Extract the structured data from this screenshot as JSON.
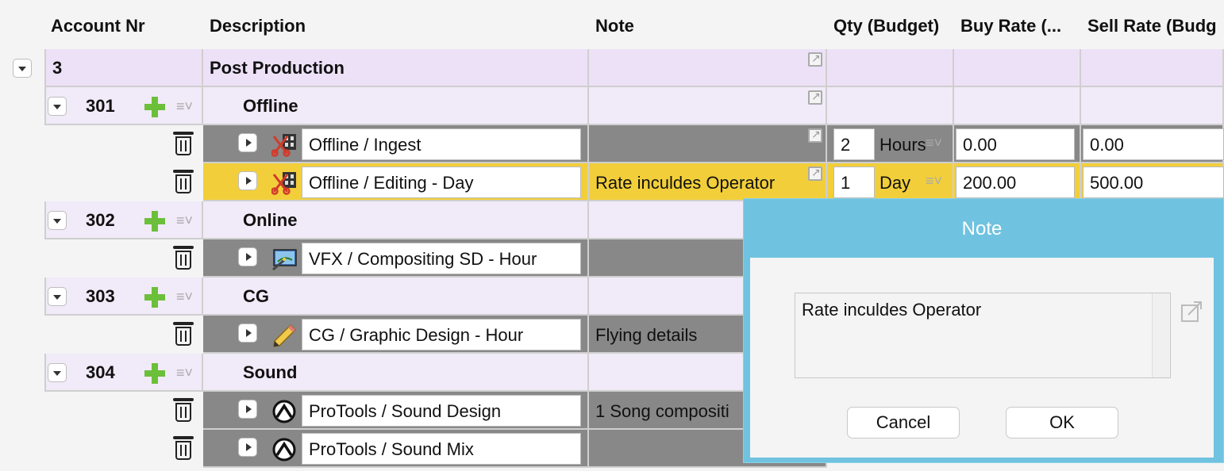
{
  "header": {
    "account_nr": "Account Nr",
    "description": "Description",
    "note": "Note",
    "qty": "Qty (Budget)",
    "buy_rate": "Buy Rate (...",
    "sell_rate": "Sell Rate (Budg"
  },
  "section": {
    "account": "3",
    "description": "Post Production"
  },
  "groups": {
    "g301": {
      "account": "301",
      "description": "Offline"
    },
    "g302": {
      "account": "302",
      "description": "Online"
    },
    "g303": {
      "account": "303",
      "description": "CG"
    },
    "g304": {
      "account": "304",
      "description": "Sound"
    }
  },
  "items": {
    "ingest": {
      "description": "Offline / Ingest",
      "note": "",
      "qty": "2",
      "unit": "Hours",
      "buy": "0.00",
      "sell": "0.00",
      "icon": "film-scissors-icon"
    },
    "editing": {
      "description": "Offline / Editing - Day",
      "note": "Rate inculdes Operator",
      "qty": "1",
      "unit": "Day",
      "buy": "200.00",
      "sell": "500.00",
      "icon": "film-scissors-icon"
    },
    "vfx": {
      "description": "VFX / Compositing SD - Hour",
      "note": "",
      "icon": "monitor-wand-icon"
    },
    "cg": {
      "description": "CG / Graphic Design - Hour",
      "note": "Flying details",
      "icon": "pencil-icon"
    },
    "sounddesign": {
      "description": "ProTools / Sound Design",
      "note": "1 Song compositi",
      "icon": "protools-icon"
    },
    "soundmix": {
      "description": "ProTools / Sound Mix",
      "note": "",
      "icon": "protools-icon"
    }
  },
  "dialog": {
    "title": "Note",
    "text": "Rate inculdes Operator",
    "cancel": "Cancel",
    "ok": "OK"
  },
  "colors": {
    "section_bg": "#ede1f7",
    "group_bg": "#f1eaf8",
    "item_bg": "#888888",
    "highlight_bg": "#f2cf3a",
    "dialog_frame": "#6fc3e0",
    "add_green": "#6cbf3a"
  }
}
